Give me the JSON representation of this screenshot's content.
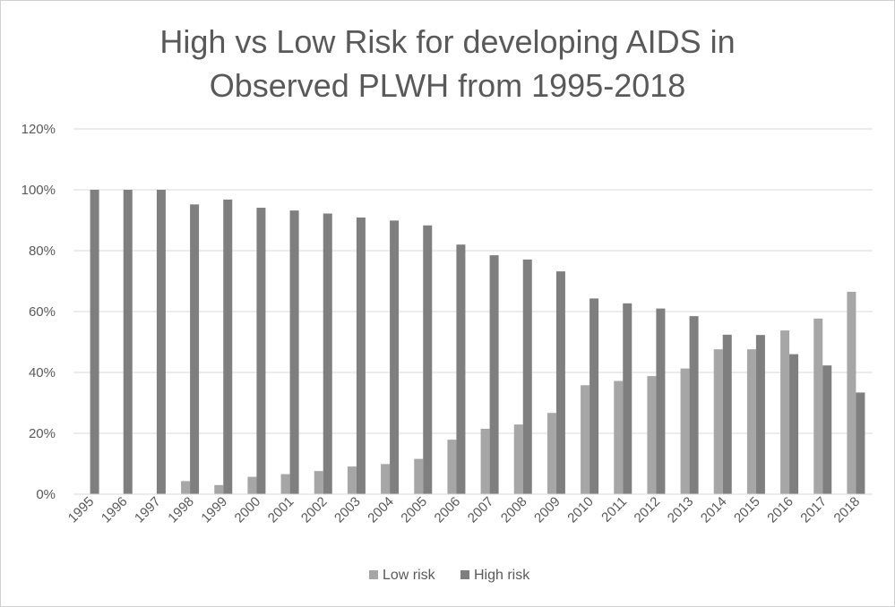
{
  "chart_data": {
    "type": "bar",
    "title_line1": "High vs Low Risk for developing AIDS in",
    "title_line2": "Observed PLWH from 1995-2018",
    "categories": [
      "1995",
      "1996",
      "1997",
      "1998",
      "1999",
      "2000",
      "2001",
      "2002",
      "2003",
      "2004",
      "2005",
      "2006",
      "2007",
      "2008",
      "2009",
      "2010",
      "2011",
      "2012",
      "2013",
      "2014",
      "2015",
      "2016",
      "2017",
      "2018"
    ],
    "series": [
      {
        "name": "Low risk",
        "color": "#a6a6a6",
        "values": [
          0,
          0,
          0,
          4.3,
          3.0,
          5.7,
          6.6,
          7.6,
          9.1,
          9.9,
          11.6,
          17.9,
          21.5,
          22.9,
          26.7,
          35.8,
          37.2,
          38.8,
          41.3,
          47.6,
          47.6,
          53.8,
          57.7,
          66.5
        ]
      },
      {
        "name": "High risk",
        "color": "#7f7f7f",
        "values": [
          100,
          100,
          100,
          95.2,
          96.8,
          94.1,
          93.2,
          92.2,
          90.9,
          89.9,
          88.3,
          82.0,
          78.5,
          77.1,
          73.2,
          64.3,
          62.7,
          61.0,
          58.5,
          52.4,
          52.3,
          46.0,
          42.3,
          33.4
        ]
      }
    ],
    "yticks": [
      "0%",
      "20%",
      "40%",
      "60%",
      "80%",
      "100%",
      "120%"
    ],
    "ylim": [
      0,
      120
    ],
    "grid": true,
    "legend_position": "bottom"
  }
}
